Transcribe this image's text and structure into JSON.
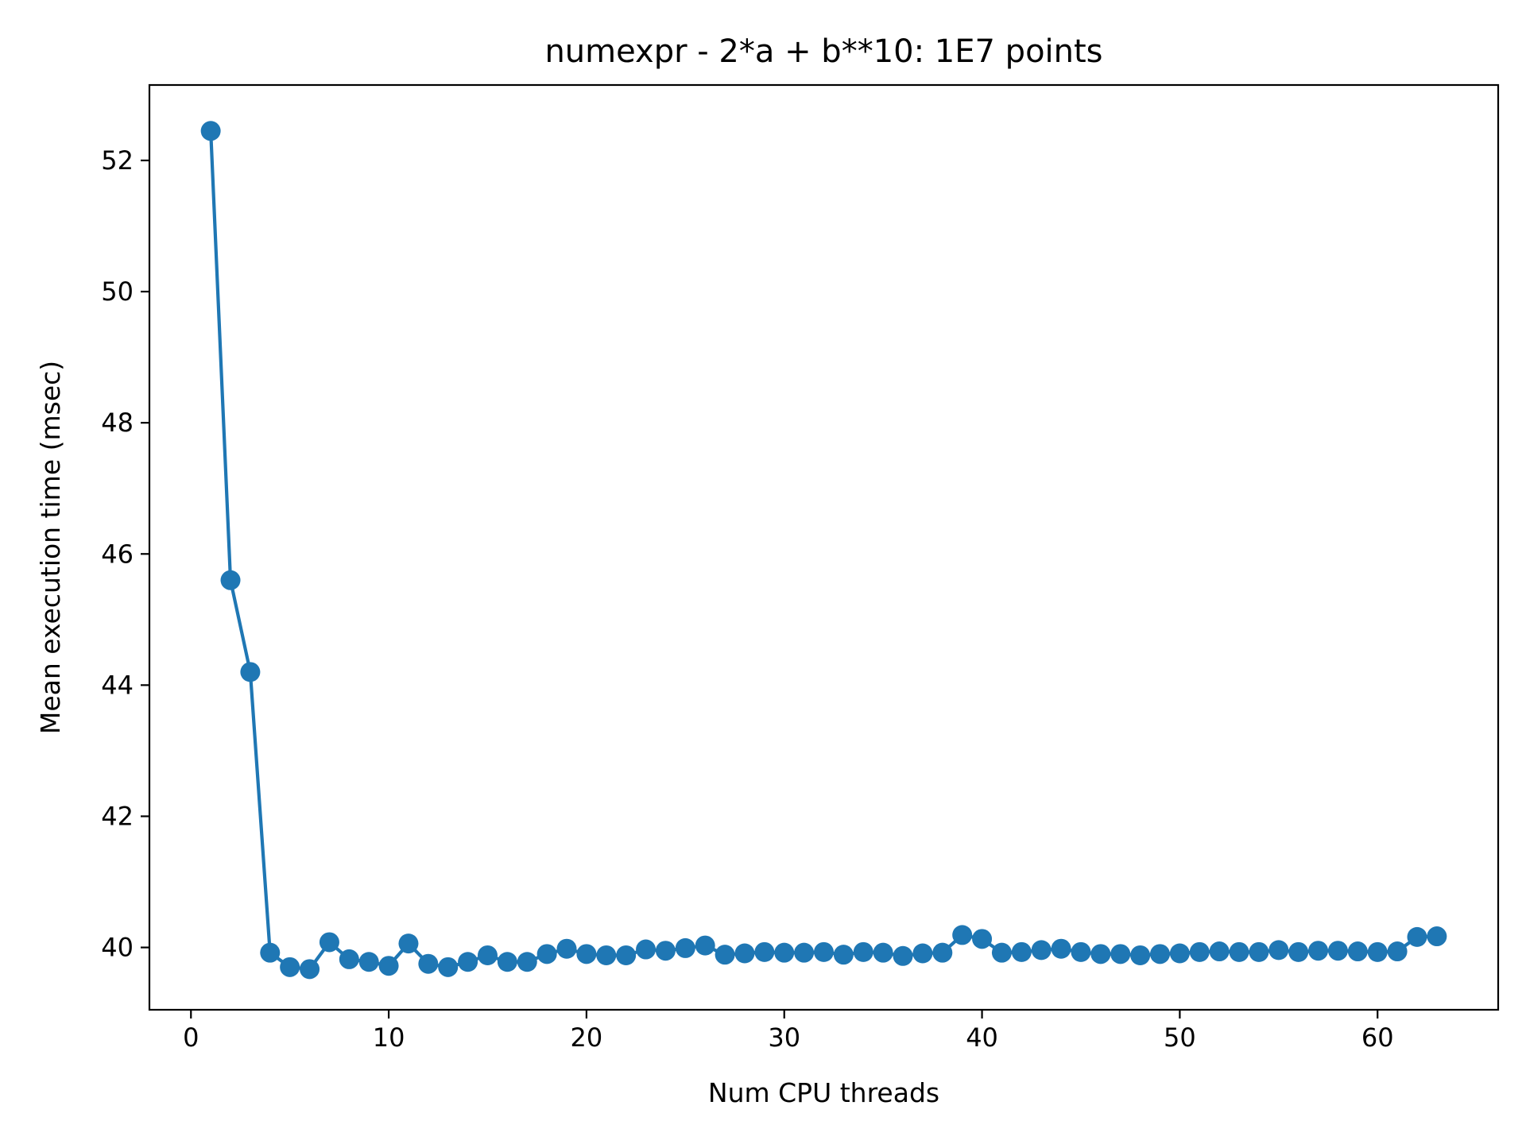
{
  "chart_data": {
    "type": "line",
    "title": "numexpr - 2*a + b**10: 1E7 points",
    "xlabel": "Num CPU threads",
    "ylabel": "Mean execution time (msec)",
    "xlim": [
      -2.1,
      66.1
    ],
    "ylim": [
      39.05,
      53.15
    ],
    "xticks": [
      0,
      10,
      20,
      30,
      40,
      50,
      60
    ],
    "yticks": [
      40,
      42,
      44,
      46,
      48,
      50,
      52
    ],
    "grid": false,
    "legend": "none",
    "series": [
      {
        "color": "#1f77b4",
        "marker": "circle",
        "x": [
          1,
          2,
          3,
          4,
          5,
          6,
          7,
          8,
          9,
          10,
          11,
          12,
          13,
          14,
          15,
          16,
          17,
          18,
          19,
          20,
          21,
          22,
          23,
          24,
          25,
          26,
          27,
          28,
          29,
          30,
          31,
          32,
          33,
          34,
          35,
          36,
          37,
          38,
          39,
          40,
          41,
          42,
          43,
          44,
          45,
          46,
          47,
          48,
          49,
          50,
          51,
          52,
          53,
          54,
          55,
          56,
          57,
          58,
          59,
          60,
          61,
          62,
          63
        ],
        "y": [
          52.45,
          45.6,
          44.2,
          39.92,
          39.7,
          39.67,
          40.08,
          39.82,
          39.78,
          39.72,
          40.06,
          39.75,
          39.7,
          39.78,
          39.88,
          39.78,
          39.78,
          39.9,
          39.98,
          39.9,
          39.88,
          39.88,
          39.97,
          39.95,
          39.99,
          40.03,
          39.89,
          39.91,
          39.93,
          39.92,
          39.92,
          39.93,
          39.89,
          39.93,
          39.92,
          39.87,
          39.91,
          39.92,
          40.19,
          40.13,
          39.92,
          39.93,
          39.96,
          39.98,
          39.93,
          39.9,
          39.9,
          39.88,
          39.9,
          39.91,
          39.93,
          39.94,
          39.93,
          39.93,
          39.96,
          39.93,
          39.95,
          39.95,
          39.94,
          39.93,
          39.94,
          40.16,
          40.17
        ]
      }
    ]
  }
}
